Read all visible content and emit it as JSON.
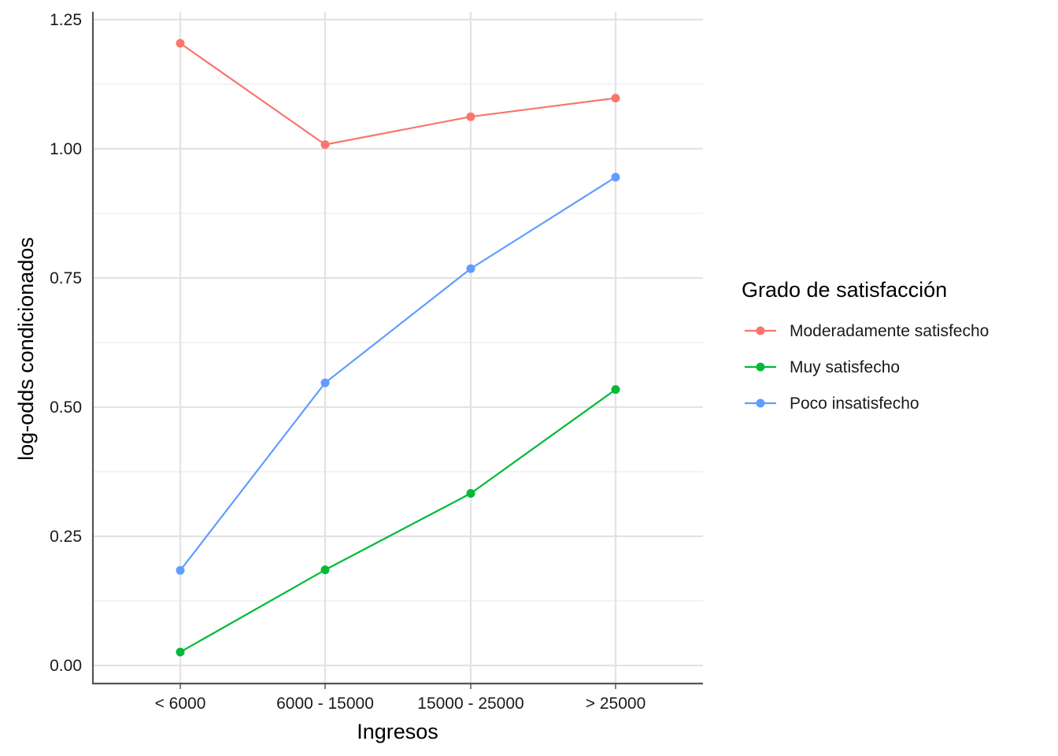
{
  "chart_data": {
    "type": "line",
    "title": "",
    "xlabel": "Ingresos",
    "ylabel": "log-odds condicionados",
    "categories": [
      "< 6000",
      "6000 - 15000",
      "15000 - 25000",
      "> 25000"
    ],
    "ylim": [
      -0.035,
      1.265
    ],
    "yticks": [
      0.0,
      0.25,
      0.5,
      0.75,
      1.0,
      1.25
    ],
    "ytick_labels": [
      "0.00",
      "0.25",
      "0.50",
      "0.75",
      "1.00",
      "1.25"
    ],
    "grid": true,
    "legend": {
      "title": "Grado de satisfacción",
      "position": "right"
    },
    "series": [
      {
        "name": "Moderadamente satisfecho",
        "color": "#F8766D",
        "values": [
          1.204,
          1.008,
          1.062,
          1.098
        ]
      },
      {
        "name": "Muy satisfecho",
        "color": "#00BA38",
        "values": [
          0.026,
          0.185,
          0.333,
          0.534
        ]
      },
      {
        "name": "Poco insatisfecho",
        "color": "#619CFF",
        "values": [
          0.184,
          0.547,
          0.768,
          0.945
        ]
      }
    ]
  }
}
